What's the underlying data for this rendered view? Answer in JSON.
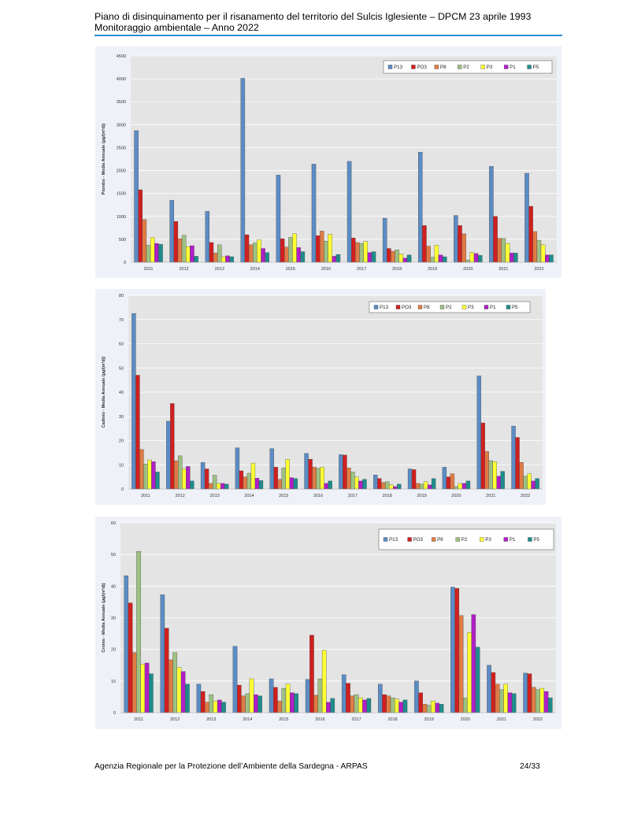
{
  "header": {
    "line1": "Piano di disinquinamento per il risanamento del territorio del Sulcis Iglesiente – DPCM 23 aprile 1993",
    "line2": "Monitoraggio ambientale – Anno 2022"
  },
  "footer": {
    "agency": "Agenzia Regionale per la Protezione dell’Ambiente della Sardegna - ARPAS",
    "page": "24/33"
  },
  "colors": {
    "P13": "#5b8cc5",
    "PO3": "#d11f1f",
    "P8": "#e07b45",
    "P2": "#9dc183",
    "P3": "#ffff33",
    "P1": "#b01fc7",
    "P5": "#1e8c8c",
    "panel_bg": "#eef1f8",
    "plot_bg": "#e4e4e4",
    "header_rule": "#2a8fd4"
  },
  "chart_data": [
    {
      "type": "bar",
      "ylabel": "Piombo - Media Annuale (µg/(m²d))",
      "ylim": [
        0,
        4500
      ],
      "yticks": [
        0,
        500,
        1000,
        1500,
        2000,
        2500,
        3000,
        3500,
        4000,
        4500
      ],
      "legend": "top-right",
      "grid": true,
      "categories": [
        "2011",
        "2012",
        "2013",
        "2014",
        "2015",
        "2016",
        "2017",
        "2018",
        "2019",
        "2020",
        "2021",
        "2022"
      ],
      "series": [
        {
          "name": "P13",
          "values": [
            2870,
            1350,
            1110,
            4010,
            1900,
            2140,
            2200,
            960,
            2400,
            1020,
            2090,
            1940
          ]
        },
        {
          "name": "PO3",
          "values": [
            1580,
            890,
            430,
            600,
            510,
            580,
            530,
            300,
            800,
            800,
            1000,
            1220
          ]
        },
        {
          "name": "P8",
          "values": [
            930,
            510,
            200,
            380,
            330,
            680,
            430,
            240,
            350,
            620,
            520,
            670
          ]
        },
        {
          "name": "P2",
          "values": [
            370,
            590,
            380,
            420,
            540,
            460,
            410,
            270,
            110,
            50,
            520,
            480
          ]
        },
        {
          "name": "P3",
          "values": [
            540,
            340,
            120,
            490,
            620,
            610,
            450,
            180,
            370,
            210,
            410,
            380
          ]
        },
        {
          "name": "P1",
          "values": [
            410,
            360,
            140,
            300,
            320,
            130,
            210,
            90,
            160,
            190,
            200,
            160
          ]
        },
        {
          "name": "P5",
          "values": [
            390,
            130,
            120,
            210,
            230,
            170,
            230,
            160,
            120,
            150,
            200,
            160
          ]
        }
      ]
    },
    {
      "type": "bar",
      "ylabel": "Cadmio - Media Annuale (µg/(m²d))",
      "ylim": [
        0,
        80
      ],
      "yticks": [
        0,
        10,
        20,
        30,
        40,
        50,
        60,
        70,
        80
      ],
      "legend": "top-right",
      "grid": true,
      "categories": [
        "2011",
        "2012",
        "2013",
        "2014",
        "2015",
        "2016",
        "2017",
        "2018",
        "2019",
        "2020",
        "2021",
        "2022"
      ],
      "series": [
        {
          "name": "P13",
          "values": [
            72.5,
            28,
            11,
            17,
            16.7,
            14.7,
            14.2,
            5.8,
            8.3,
            9,
            46.7,
            26
          ]
        },
        {
          "name": "PO3",
          "values": [
            47,
            35.3,
            8.3,
            7.5,
            9,
            12.3,
            14,
            4.3,
            8,
            5,
            27.3,
            21.3
          ]
        },
        {
          "name": "P8",
          "values": [
            16.3,
            11.7,
            2.3,
            5,
            4,
            9,
            8.7,
            2.7,
            2.3,
            6.3,
            15.5,
            11
          ]
        },
        {
          "name": "P2",
          "values": [
            10.3,
            13.7,
            5.7,
            6.5,
            8.7,
            8.5,
            7,
            3,
            2,
            1,
            11.7,
            5.3
          ]
        },
        {
          "name": "P3",
          "values": [
            12,
            8.3,
            2.3,
            10.7,
            12.3,
            9,
            5,
            1.7,
            3,
            2.3,
            11.3,
            6.3
          ]
        },
        {
          "name": "P1",
          "values": [
            11.3,
            9.3,
            2.3,
            4.5,
            4.7,
            2.3,
            3.3,
            1,
            1.7,
            2.3,
            5.3,
            3.3
          ]
        },
        {
          "name": "P5",
          "values": [
            7,
            3.3,
            2,
            3.5,
            4.3,
            3.3,
            4,
            2,
            4.3,
            3.3,
            7.3,
            4.3
          ]
        }
      ]
    },
    {
      "type": "bar",
      "ylabel": "Cromo - Media Annuale (µg/(m²d))",
      "ylim": [
        0,
        60
      ],
      "yticks": [
        0,
        10,
        20,
        30,
        40,
        50,
        60
      ],
      "legend": "top-right",
      "grid": true,
      "categories": [
        "2011",
        "2012",
        "2013",
        "2014",
        "2015",
        "2016",
        "2017",
        "2018",
        "2019",
        "2020",
        "2021",
        "2022"
      ],
      "series": [
        {
          "name": "P13",
          "values": [
            43.3,
            37.3,
            9,
            21,
            10.7,
            10.5,
            12,
            9,
            10,
            39.7,
            15,
            12.5
          ]
        },
        {
          "name": "PO3",
          "values": [
            34.7,
            26.7,
            6.7,
            8.7,
            8,
            24.5,
            9.3,
            5.7,
            6.3,
            39.3,
            12.7,
            12.3
          ]
        },
        {
          "name": "P8",
          "values": [
            19,
            16.7,
            3.3,
            5.3,
            3.7,
            5.5,
            5.3,
            5.3,
            2.7,
            30.7,
            9,
            8
          ]
        },
        {
          "name": "P2",
          "values": [
            51,
            19,
            5.7,
            6,
            7.7,
            10.7,
            5.7,
            4.7,
            2.3,
            4.7,
            7.3,
            7.3
          ]
        },
        {
          "name": "P3",
          "values": [
            15.3,
            14.3,
            3.7,
            10.7,
            9,
            19.7,
            4.7,
            4.3,
            3.7,
            25.3,
            9,
            7.7
          ]
        },
        {
          "name": "P1",
          "values": [
            15.7,
            13,
            4,
            5.7,
            6.3,
            3.3,
            4,
            3.3,
            3,
            31,
            6.3,
            6.7
          ]
        },
        {
          "name": "P5",
          "values": [
            12.3,
            9,
            3.3,
            5.3,
            6,
            4.5,
            4.5,
            4,
            2.7,
            20.7,
            6,
            4.7
          ]
        }
      ]
    }
  ]
}
